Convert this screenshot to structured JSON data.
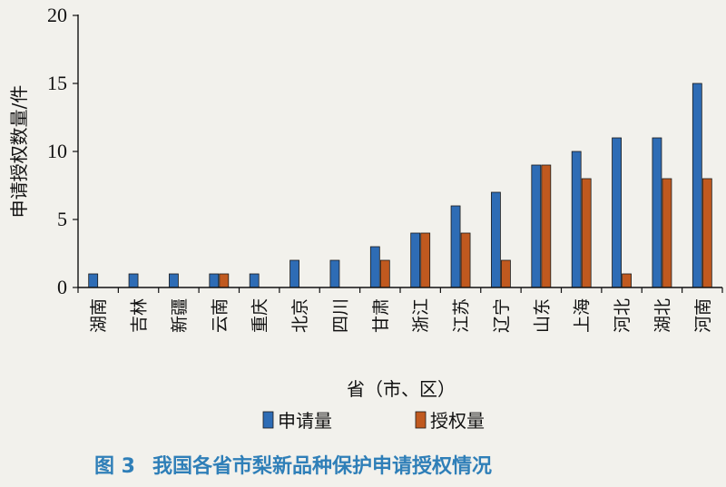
{
  "figure": {
    "caption_number": "图 3",
    "caption_text": "我国各省市梨新品种保护申请授权情况"
  },
  "chart_data": {
    "type": "bar",
    "title": "",
    "xlabel": "省（市、区）",
    "ylabel": "申请授权数量/件",
    "ylim": [
      0,
      20
    ],
    "yticks": [
      0,
      5,
      10,
      15,
      20
    ],
    "grid": false,
    "legend_position": "bottom",
    "categories": [
      "湖南",
      "吉林",
      "新疆",
      "云南",
      "重庆",
      "北京",
      "四川",
      "甘肃",
      "浙江",
      "江苏",
      "辽宁",
      "山东",
      "上海",
      "河北",
      "湖北",
      "河南"
    ],
    "series": [
      {
        "name": "申请量",
        "color": "#2e6cb5",
        "values": [
          1,
          1,
          1,
          1,
          1,
          2,
          2,
          3,
          4,
          6,
          7,
          9,
          10,
          11,
          11,
          15
        ]
      },
      {
        "name": "授权量",
        "color": "#c0591f",
        "values": [
          0,
          0,
          0,
          1,
          0,
          0,
          0,
          2,
          4,
          4,
          2,
          9,
          8,
          1,
          8,
          8
        ]
      }
    ]
  }
}
